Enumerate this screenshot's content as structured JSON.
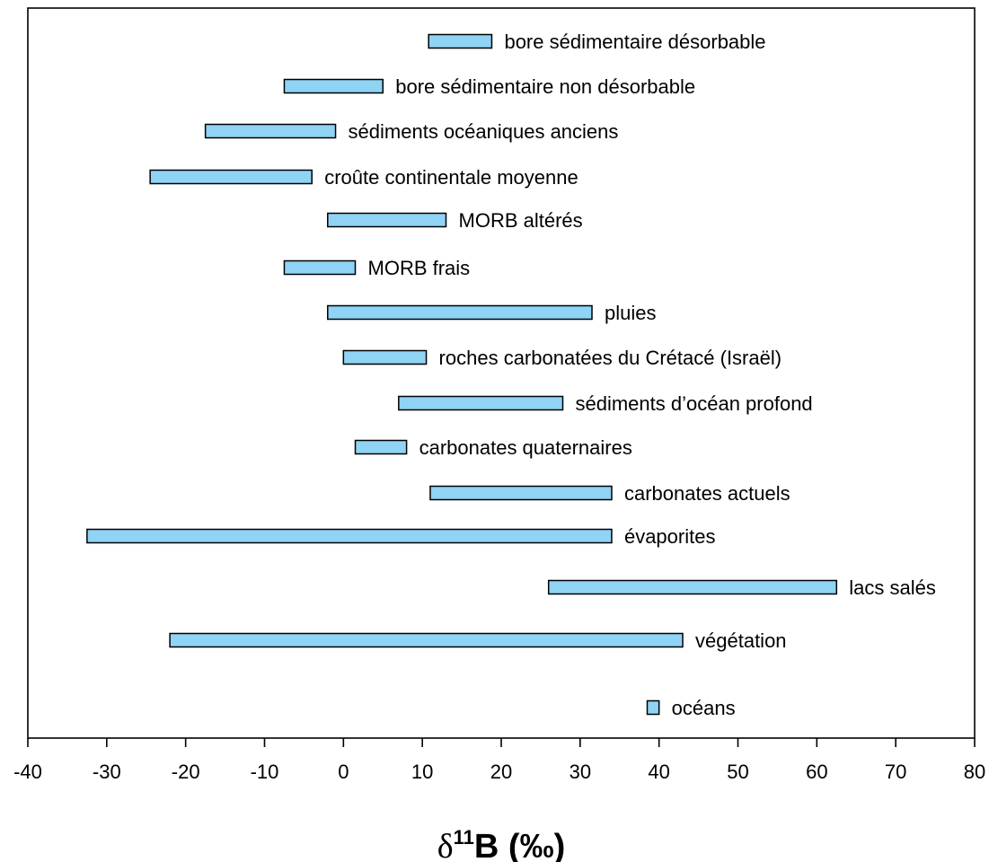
{
  "chart_data": {
    "type": "range-bar",
    "orientation": "horizontal",
    "xlabel": "δ¹¹B (‰)",
    "xlim": [
      -40,
      80
    ],
    "xticks": [
      -40,
      -30,
      -20,
      -10,
      0,
      10,
      20,
      30,
      40,
      50,
      60,
      70,
      80
    ],
    "grid": false,
    "bar_color": "#8fd3f5",
    "bars": [
      {
        "label": "bore sédimentaire désorbable",
        "min": 10.8,
        "max": 18.8
      },
      {
        "label": "bore sédimentaire non désorbable",
        "min": -7.5,
        "max": 5.0
      },
      {
        "label": "sédiments océaniques anciens",
        "min": -17.5,
        "max": -1.0
      },
      {
        "label": "croûte continentale moyenne",
        "min": -24.5,
        "max": -4.0
      },
      {
        "label": "MORB altérés",
        "min": -2.0,
        "max": 13.0
      },
      {
        "label": "MORB frais",
        "min": -7.5,
        "max": 1.5
      },
      {
        "label": "pluies",
        "min": -2.0,
        "max": 31.5
      },
      {
        "label": "roches carbonatées du Crétacé (Israël)",
        "min": 0.0,
        "max": 10.5
      },
      {
        "label": "sédiments d’océan profond",
        "min": 7.0,
        "max": 27.8
      },
      {
        "label": "carbonates quaternaires",
        "min": 1.5,
        "max": 8.0
      },
      {
        "label": "carbonates actuels",
        "min": 11.0,
        "max": 34.0
      },
      {
        "label": "évaporites",
        "min": -32.5,
        "max": 34.0
      },
      {
        "label": "lacs salés",
        "min": 26.0,
        "max": 62.5
      },
      {
        "label": "végétation",
        "min": -22.0,
        "max": 43.0
      },
      {
        "label": "océans",
        "min": 38.5,
        "max": 40.0
      }
    ]
  }
}
